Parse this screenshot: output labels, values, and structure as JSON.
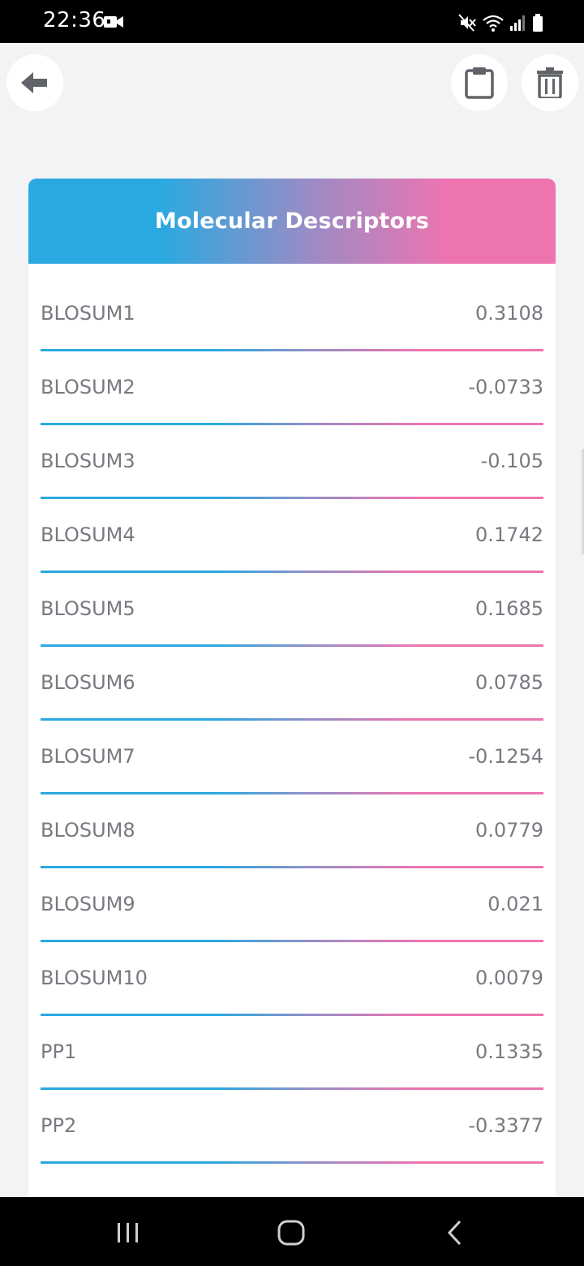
{
  "status_bar": {
    "time": "22:36"
  },
  "toolbar": {
    "back_icon": "arrow-left-icon",
    "clipboard_icon": "clipboard-icon",
    "delete_icon": "trash-icon"
  },
  "card": {
    "title": "Molecular Descriptors",
    "gradient_colors": [
      "#2aa9e0",
      "#ee74b0"
    ],
    "rows": [
      {
        "label": "BLOSUM1",
        "value": "0.3108"
      },
      {
        "label": "BLOSUM2",
        "value": "-0.0733"
      },
      {
        "label": "BLOSUM3",
        "value": "-0.105"
      },
      {
        "label": "BLOSUM4",
        "value": "0.1742"
      },
      {
        "label": "BLOSUM5",
        "value": "0.1685"
      },
      {
        "label": "BLOSUM6",
        "value": "0.0785"
      },
      {
        "label": "BLOSUM7",
        "value": "-0.1254"
      },
      {
        "label": "BLOSUM8",
        "value": "0.0779"
      },
      {
        "label": "BLOSUM9",
        "value": "0.021"
      },
      {
        "label": "BLOSUM10",
        "value": "0.0079"
      },
      {
        "label": "PP1",
        "value": "0.1335"
      },
      {
        "label": "PP2",
        "value": "-0.3377"
      }
    ]
  },
  "nav_bar": {
    "recents_icon": "recents-icon",
    "home_icon": "home-icon",
    "back_icon": "nav-back-icon"
  }
}
